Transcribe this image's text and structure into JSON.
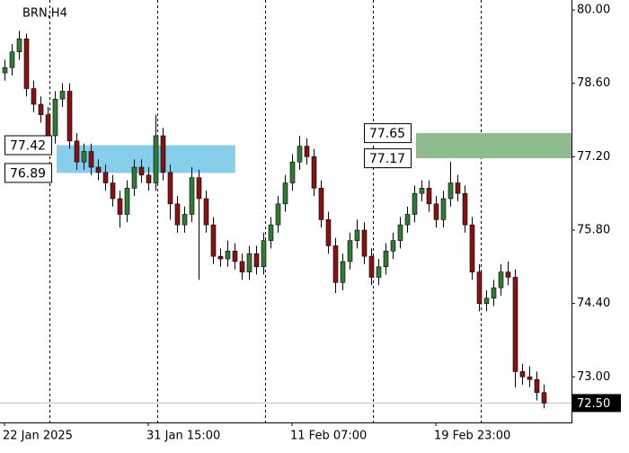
{
  "chart_data": {
    "type": "candlestick",
    "title": "BRN,H4",
    "categories": [
      "22 Jan 2025",
      null,
      null,
      null,
      null,
      null,
      null,
      null,
      null,
      null,
      null,
      null,
      null,
      null,
      null,
      null,
      null,
      null,
      null,
      null,
      "31 Jan 15:00",
      null,
      null,
      null,
      null,
      null,
      null,
      null,
      null,
      null,
      null,
      null,
      null,
      null,
      null,
      null,
      null,
      null,
      null,
      null,
      "11 Feb 07:00",
      null,
      null,
      null,
      null,
      null,
      null,
      null,
      null,
      null,
      null,
      null,
      null,
      null,
      null,
      null,
      null,
      null,
      null,
      null,
      "19 Feb 23:00",
      null,
      null,
      null,
      null,
      null,
      null,
      null,
      null,
      null,
      null,
      null,
      null,
      null,
      null,
      null
    ],
    "open": [
      78.8,
      78.9,
      79.2,
      79.45,
      78.5,
      78.2,
      78.0,
      77.6,
      78.3,
      78.45,
      77.5,
      77.1,
      77.3,
      77.0,
      76.9,
      76.7,
      76.4,
      76.1,
      76.6,
      77.0,
      76.85,
      76.7,
      77.6,
      76.9,
      76.3,
      75.9,
      76.1,
      76.8,
      76.4,
      75.9,
      75.3,
      75.25,
      75.4,
      75.2,
      75.0,
      75.35,
      75.1,
      75.6,
      75.9,
      76.3,
      76.7,
      77.1,
      77.4,
      77.2,
      76.6,
      76.0,
      75.5,
      74.8,
      75.2,
      75.6,
      75.8,
      75.3,
      74.9,
      75.1,
      75.4,
      75.6,
      75.9,
      76.1,
      76.5,
      76.6,
      76.3,
      76.0,
      76.4,
      76.7,
      76.5,
      75.9,
      75.0,
      74.4,
      74.5,
      74.7,
      75.0,
      74.9,
      73.1,
      73.0,
      72.95,
      72.7
    ],
    "high": [
      79.05,
      79.35,
      79.6,
      79.55,
      78.65,
      78.35,
      78.15,
      78.45,
      78.6,
      78.6,
      77.65,
      77.45,
      77.45,
      77.15,
      77.05,
      76.85,
      76.55,
      76.75,
      77.15,
      77.15,
      77.0,
      78.0,
      77.75,
      77.05,
      76.45,
      76.25,
      77.0,
      76.95,
      76.55,
      76.05,
      75.45,
      75.6,
      75.55,
      75.35,
      75.5,
      75.5,
      75.75,
      76.05,
      76.45,
      76.85,
      77.25,
      77.6,
      77.55,
      77.35,
      76.75,
      76.15,
      75.65,
      75.35,
      75.75,
      76.0,
      75.95,
      75.45,
      75.25,
      75.55,
      75.75,
      76.05,
      76.25,
      76.65,
      76.75,
      76.75,
      76.45,
      76.55,
      77.1,
      76.85,
      76.65,
      76.05,
      75.15,
      74.65,
      74.85,
      75.15,
      75.2,
      75.05,
      73.25,
      73.2,
      73.1,
      72.85
    ],
    "low": [
      78.65,
      78.75,
      79.05,
      78.35,
      78.05,
      77.85,
      77.45,
      77.45,
      78.15,
      77.35,
      76.95,
      76.95,
      76.85,
      76.75,
      76.55,
      76.25,
      75.85,
      75.95,
      76.45,
      76.7,
      76.55,
      76.55,
      76.75,
      76.0,
      75.75,
      75.75,
      75.95,
      74.85,
      75.75,
      75.15,
      75.1,
      75.1,
      75.05,
      74.85,
      74.85,
      74.95,
      74.95,
      75.45,
      75.75,
      76.15,
      76.55,
      76.95,
      77.05,
      76.45,
      75.85,
      75.35,
      74.6,
      74.65,
      75.05,
      75.45,
      75.15,
      74.75,
      74.75,
      74.95,
      75.25,
      75.45,
      75.75,
      75.95,
      76.35,
      76.15,
      75.85,
      75.85,
      76.25,
      76.35,
      75.75,
      74.85,
      74.25,
      74.25,
      74.35,
      74.55,
      74.75,
      72.8,
      72.85,
      72.8,
      72.55,
      72.4
    ],
    "close": [
      78.9,
      79.2,
      79.45,
      78.5,
      78.2,
      78.0,
      77.6,
      78.3,
      78.45,
      77.5,
      77.1,
      77.3,
      77.0,
      76.9,
      76.7,
      76.4,
      76.1,
      76.6,
      77.0,
      76.85,
      76.7,
      77.6,
      76.9,
      76.3,
      75.9,
      76.1,
      76.8,
      76.4,
      75.9,
      75.3,
      75.25,
      75.4,
      75.2,
      75.0,
      75.35,
      75.1,
      75.6,
      75.9,
      76.3,
      76.7,
      77.1,
      77.4,
      77.2,
      76.6,
      76.0,
      75.5,
      74.8,
      75.2,
      75.6,
      75.8,
      75.3,
      74.9,
      75.1,
      75.4,
      75.6,
      75.9,
      76.1,
      76.5,
      76.6,
      76.3,
      76.0,
      76.4,
      76.7,
      76.5,
      75.9,
      75.0,
      74.4,
      74.5,
      74.7,
      75.0,
      74.9,
      73.1,
      73.0,
      72.95,
      72.7,
      72.5
    ],
    "up_color": "#2e7d32",
    "down_color": "#8b1010",
    "ylim": [
      72.13,
      80.19
    ],
    "yticks": [
      {
        "value": 73,
        "label": "73.00"
      },
      {
        "value": 74.4,
        "label": "74.40"
      },
      {
        "value": 75.8,
        "label": "75.80"
      },
      {
        "value": 77.2,
        "label": "77.20"
      },
      {
        "value": 78.6,
        "label": "78.60"
      },
      {
        "value": 80,
        "label": "80.00"
      }
    ],
    "last_price": {
      "value": 72.5,
      "label": "72.50"
    },
    "zones": [
      {
        "top": 77.42,
        "bottom": 76.89,
        "start": 7.25,
        "end": 32.1,
        "color": "#87ceeb"
      },
      {
        "top": 77.65,
        "bottom": 77.17,
        "start": 57.25,
        "color": "#8fbc8f"
      }
    ]
  }
}
